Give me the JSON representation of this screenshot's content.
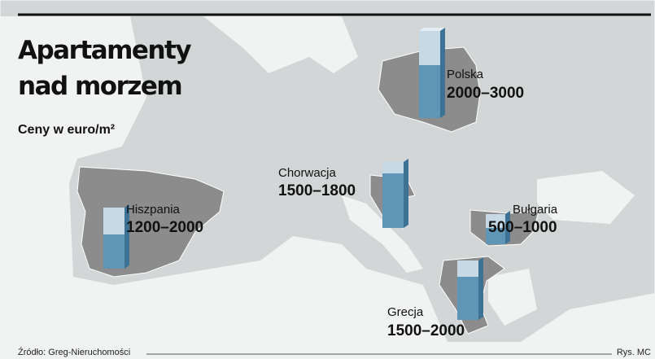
{
  "header": {
    "title_line1": "Apartamenty",
    "title_line2": "nad morzem",
    "subtitle": "Ceny w euro/m²"
  },
  "regions": [
    {
      "name": "Polska",
      "price": "2000–3000"
    },
    {
      "name": "Chorwacja",
      "price": "1500–1800"
    },
    {
      "name": "Hiszpania",
      "price": "1200–2000"
    },
    {
      "name": "Bułgaria",
      "price": "500–1000"
    },
    {
      "name": "Grecja",
      "price": "1500–2000"
    }
  ],
  "footer": {
    "source": "Źródło: Greg-Nieruchomości",
    "credit": "Rys. MC"
  }
}
